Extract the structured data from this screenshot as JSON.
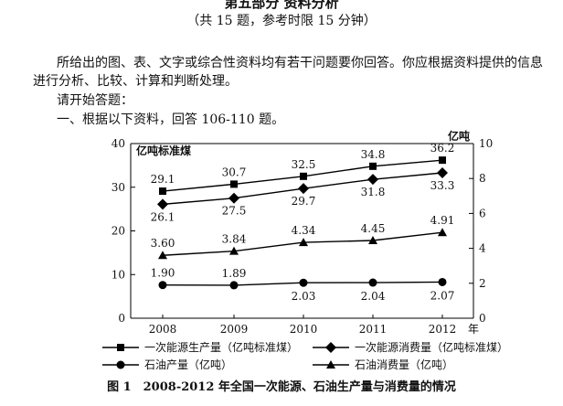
{
  "header": {
    "title": "第五部分 资料分析",
    "subtitle": "（共 15 题，参考时限 15 分钟）"
  },
  "intro": {
    "line1": "所给出的图、表、文字或综合性资料均有若干问题要你回答。你应根据资料提供的信息",
    "line2": "进行分析、比较、计算和判断处理。",
    "line3": "请开始答题：",
    "line4": "一、根据以下资料，回答 106-110 题。"
  },
  "chart_data": {
    "type": "line",
    "categories": [
      "2008",
      "2009",
      "2010",
      "2011",
      "2012"
    ],
    "x_unit": "年",
    "left_axis": {
      "label": "亿吨标准煤",
      "ticks": [
        0,
        10,
        20,
        30,
        40
      ],
      "ylim": [
        0,
        40
      ]
    },
    "right_axis": {
      "label": "亿吨",
      "ticks": [
        0,
        2,
        4,
        6,
        8,
        10
      ],
      "ylim": [
        0,
        10
      ]
    },
    "series": [
      {
        "name": "一次能源生产量（亿吨标准煤）",
        "axis": "left",
        "marker": "square",
        "values": [
          29.1,
          30.7,
          32.5,
          34.8,
          36.2
        ],
        "labels": [
          "29.1",
          "30.7",
          "32.5",
          "34.8",
          "36.2"
        ],
        "label_pos": "above"
      },
      {
        "name": "一次能源消费量（亿吨标准煤）",
        "axis": "left",
        "marker": "diamond",
        "values": [
          26.1,
          27.5,
          29.7,
          31.8,
          33.3
        ],
        "labels": [
          "26.1",
          "27.5",
          "29.7",
          "31.8",
          "33.3"
        ],
        "label_pos": "below"
      },
      {
        "name": "石油产量（亿吨）",
        "axis": "right",
        "marker": "circle",
        "values": [
          1.9,
          1.89,
          2.03,
          2.04,
          2.07
        ],
        "labels": [
          "1.90",
          "1.89",
          "2.03",
          "2.04",
          "2.07"
        ],
        "label_pos": "mixed"
      },
      {
        "name": "石油消费量（亿吨）",
        "axis": "right",
        "marker": "triangle",
        "values": [
          3.6,
          3.84,
          4.34,
          4.45,
          4.91
        ],
        "labels": [
          "3.60",
          "3.84",
          "4.34",
          "4.45",
          "4.91"
        ],
        "label_pos": "above"
      }
    ],
    "legend_position": "bottom",
    "grid": false,
    "caption": "图 1　2008-2012 年全国一次能源、石油生产量与消费量的情况"
  }
}
